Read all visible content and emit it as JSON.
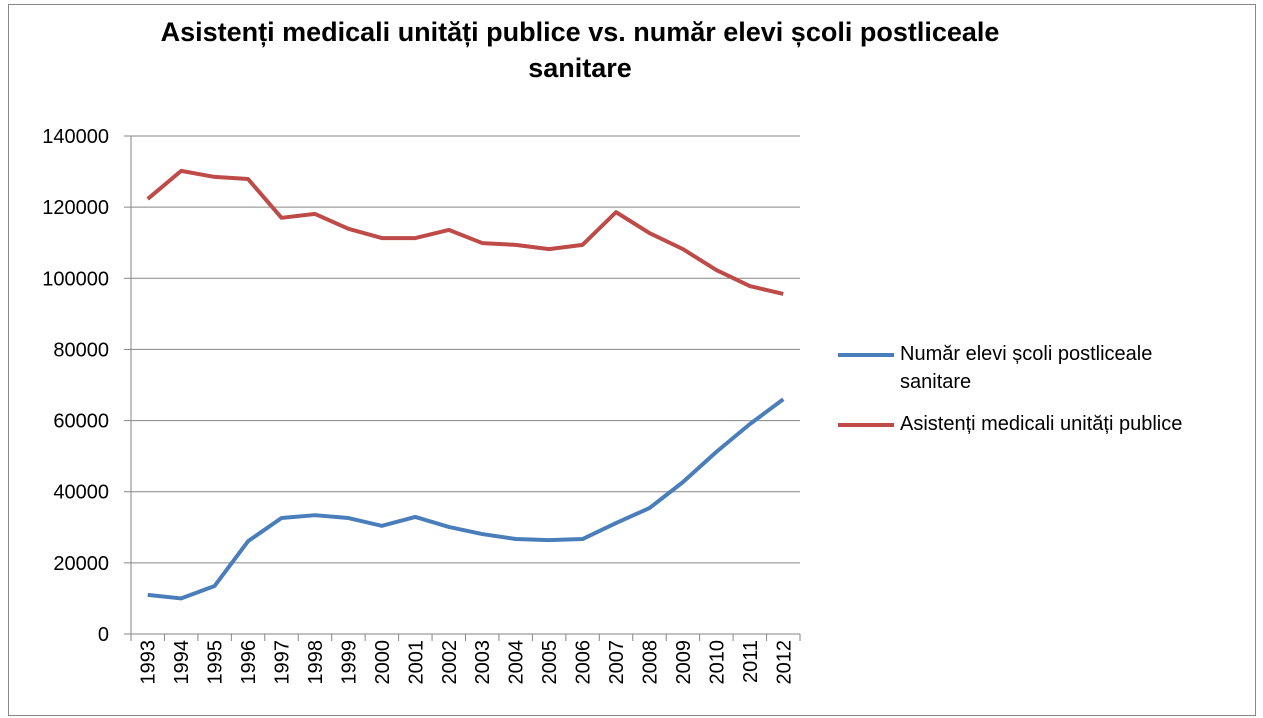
{
  "chart_data": {
    "type": "line",
    "title": "Asistenți medicali unități publice vs. număr elevi școli postliceale sanitare",
    "categories": [
      "1993",
      "1994",
      "1995",
      "1996",
      "1997",
      "1998",
      "1999",
      "2000",
      "2001",
      "2002",
      "2003",
      "2004",
      "2005",
      "2006",
      "2007",
      "2008",
      "2009",
      "2010",
      "2011",
      "2012"
    ],
    "series": [
      {
        "name": "Număr  elevi școli postliceale sanitare",
        "color": "#4a7ebb",
        "values": [
          11000,
          10000,
          13500,
          26100,
          32600,
          33400,
          32600,
          30400,
          32900,
          30100,
          28100,
          26700,
          26400,
          26700,
          31200,
          35400,
          42700,
          51200,
          59000,
          66000
        ]
      },
      {
        "name": "Asistenți medicali unități publice",
        "color": "#be4b48",
        "values": [
          122300,
          130200,
          128500,
          127900,
          117000,
          118100,
          113900,
          111300,
          111300,
          113600,
          109900,
          109400,
          108200,
          109400,
          118600,
          112700,
          108200,
          102300,
          97800,
          95600
        ]
      }
    ],
    "ylim": [
      0,
      140000
    ],
    "yticks": [
      0,
      20000,
      40000,
      60000,
      80000,
      100000,
      120000,
      140000
    ],
    "grid": true,
    "legend": "right"
  }
}
